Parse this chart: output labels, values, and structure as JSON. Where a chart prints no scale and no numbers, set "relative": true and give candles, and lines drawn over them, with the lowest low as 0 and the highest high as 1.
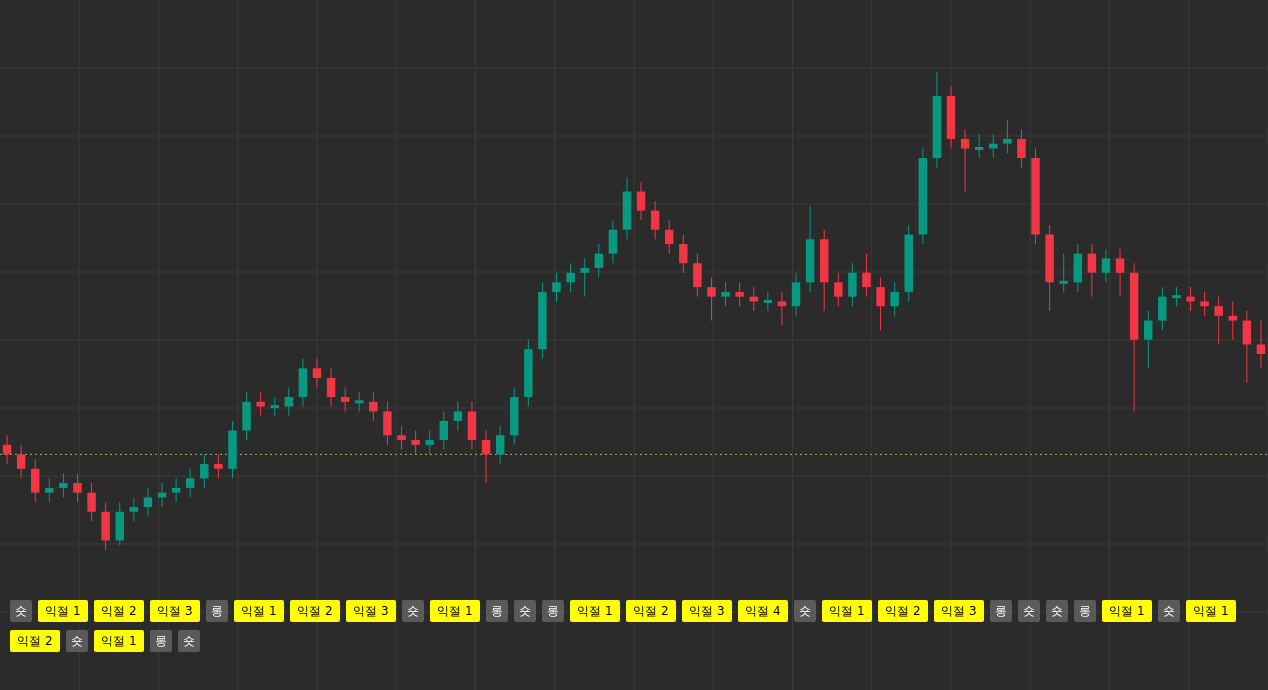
{
  "chart_data": {
    "type": "candlestick",
    "relative": true,
    "grid": true,
    "categories": [
      null,
      null,
      null,
      null,
      null,
      null,
      null,
      null,
      null,
      null,
      null,
      null,
      null,
      null,
      null,
      null,
      null,
      null,
      null,
      null,
      null,
      null,
      null,
      null,
      null,
      null,
      null,
      null,
      null,
      null,
      null,
      null,
      null,
      null,
      null,
      null,
      null,
      null,
      null,
      null,
      null,
      null,
      null,
      null,
      null,
      null,
      null,
      null,
      null,
      null,
      null,
      null,
      null,
      null,
      null,
      null,
      null,
      null,
      null,
      null,
      null,
      null,
      null,
      null,
      null,
      null,
      null,
      null,
      null,
      null,
      null,
      null,
      null,
      null,
      null,
      null,
      null,
      null,
      null,
      null,
      null,
      null,
      null,
      null,
      null,
      null,
      null,
      null,
      null,
      null
    ],
    "ohlc": [
      [
        0.22,
        0.24,
        0.18,
        0.2
      ],
      [
        0.2,
        0.22,
        0.15,
        0.17
      ],
      [
        0.17,
        0.19,
        0.1,
        0.12
      ],
      [
        0.12,
        0.15,
        0.1,
        0.13
      ],
      [
        0.13,
        0.16,
        0.11,
        0.14
      ],
      [
        0.14,
        0.16,
        0.1,
        0.12
      ],
      [
        0.12,
        0.14,
        0.06,
        0.08
      ],
      [
        0.08,
        0.1,
        0,
        0.02
      ],
      [
        0.02,
        0.1,
        0.01,
        0.08
      ],
      [
        0.08,
        0.11,
        0.06,
        0.09
      ],
      [
        0.09,
        0.13,
        0.07,
        0.11
      ],
      [
        0.11,
        0.14,
        0.09,
        0.12
      ],
      [
        0.12,
        0.15,
        0.1,
        0.13
      ],
      [
        0.13,
        0.17,
        0.11,
        0.15
      ],
      [
        0.15,
        0.2,
        0.13,
        0.18
      ],
      [
        0.18,
        0.2,
        0.15,
        0.17
      ],
      [
        0.17,
        0.27,
        0.15,
        0.25
      ],
      [
        0.25,
        0.33,
        0.23,
        0.31
      ],
      [
        0.31,
        0.33,
        0.28,
        0.3
      ],
      [
        0.3,
        0.32,
        0.28,
        0.3
      ],
      [
        0.3,
        0.34,
        0.28,
        0.32
      ],
      [
        0.32,
        0.4,
        0.3,
        0.38
      ],
      [
        0.38,
        0.4,
        0.34,
        0.36
      ],
      [
        0.36,
        0.38,
        0.3,
        0.32
      ],
      [
        0.32,
        0.34,
        0.29,
        0.31
      ],
      [
        0.31,
        0.33,
        0.29,
        0.31
      ],
      [
        0.31,
        0.33,
        0.27,
        0.29
      ],
      [
        0.29,
        0.31,
        0.22,
        0.24
      ],
      [
        0.24,
        0.26,
        0.21,
        0.23
      ],
      [
        0.23,
        0.25,
        0.2,
        0.22
      ],
      [
        0.22,
        0.25,
        0.2,
        0.23
      ],
      [
        0.23,
        0.29,
        0.21,
        0.27
      ],
      [
        0.27,
        0.31,
        0.25,
        0.29
      ],
      [
        0.29,
        0.31,
        0.21,
        0.23
      ],
      [
        0.23,
        0.25,
        0.14,
        0.2
      ],
      [
        0.2,
        0.26,
        0.18,
        0.24
      ],
      [
        0.24,
        0.34,
        0.22,
        0.32
      ],
      [
        0.32,
        0.44,
        0.3,
        0.42
      ],
      [
        0.42,
        0.56,
        0.4,
        0.54
      ],
      [
        0.54,
        0.58,
        0.52,
        0.56
      ],
      [
        0.56,
        0.6,
        0.54,
        0.58
      ],
      [
        0.58,
        0.61,
        0.53,
        0.59
      ],
      [
        0.59,
        0.64,
        0.57,
        0.62
      ],
      [
        0.62,
        0.69,
        0.6,
        0.67
      ],
      [
        0.67,
        0.78,
        0.65,
        0.75
      ],
      [
        0.75,
        0.77,
        0.69,
        0.71
      ],
      [
        0.71,
        0.73,
        0.65,
        0.67
      ],
      [
        0.67,
        0.69,
        0.62,
        0.64
      ],
      [
        0.64,
        0.66,
        0.58,
        0.6
      ],
      [
        0.6,
        0.62,
        0.53,
        0.55
      ],
      [
        0.55,
        0.57,
        0.48,
        0.53
      ],
      [
        0.53,
        0.56,
        0.51,
        0.54
      ],
      [
        0.54,
        0.56,
        0.51,
        0.53
      ],
      [
        0.53,
        0.55,
        0.5,
        0.52
      ],
      [
        0.52,
        0.54,
        0.5,
        0.52
      ],
      [
        0.52,
        0.54,
        0.47,
        0.51
      ],
      [
        0.51,
        0.58,
        0.49,
        0.56
      ],
      [
        0.56,
        0.72,
        0.54,
        0.65
      ],
      [
        0.65,
        0.67,
        0.5,
        0.56
      ],
      [
        0.56,
        0.58,
        0.51,
        0.53
      ],
      [
        0.53,
        0.6,
        0.51,
        0.58
      ],
      [
        0.58,
        0.62,
        0.53,
        0.55
      ],
      [
        0.55,
        0.57,
        0.46,
        0.51
      ],
      [
        0.51,
        0.56,
        0.49,
        0.54
      ],
      [
        0.54,
        0.68,
        0.52,
        0.66
      ],
      [
        0.66,
        0.84,
        0.64,
        0.82
      ],
      [
        0.82,
        1,
        0.8,
        0.95
      ],
      [
        0.95,
        0.97,
        0.84,
        0.86
      ],
      [
        0.86,
        0.88,
        0.75,
        0.84
      ],
      [
        0.84,
        0.87,
        0.82,
        0.84
      ],
      [
        0.84,
        0.87,
        0.82,
        0.85
      ],
      [
        0.85,
        0.9,
        0.83,
        0.86
      ],
      [
        0.86,
        0.88,
        0.8,
        0.82
      ],
      [
        0.82,
        0.84,
        0.64,
        0.66
      ],
      [
        0.66,
        0.68,
        0.5,
        0.56
      ],
      [
        0.56,
        0.62,
        0.54,
        0.56
      ],
      [
        0.56,
        0.64,
        0.54,
        0.62
      ],
      [
        0.62,
        0.64,
        0.53,
        0.58
      ],
      [
        0.58,
        0.63,
        0.56,
        0.61
      ],
      [
        0.61,
        0.63,
        0.53,
        0.58
      ],
      [
        0.58,
        0.6,
        0.29,
        0.44
      ],
      [
        0.44,
        0.5,
        0.38,
        0.48
      ],
      [
        0.48,
        0.55,
        0.46,
        0.53
      ],
      [
        0.53,
        0.55,
        0.51,
        0.53
      ],
      [
        0.53,
        0.55,
        0.5,
        0.52
      ],
      [
        0.52,
        0.54,
        0.49,
        0.51
      ],
      [
        0.51,
        0.53,
        0.43,
        0.49
      ],
      [
        0.49,
        0.52,
        0.44,
        0.48
      ],
      [
        0.48,
        0.5,
        0.35,
        0.43
      ],
      [
        0.43,
        0.48,
        0.38,
        0.41
      ]
    ],
    "ref_lines": [
      {
        "axis": "y",
        "value": 0.2,
        "color": "#8bc34a",
        "line_style": "dotted"
      }
    ],
    "annotations": [
      "숏",
      "익절 1",
      "익절 2",
      "익절 3",
      "롱",
      "익절 1",
      "익절 2",
      "익절 3",
      "숏",
      "익절 1",
      "롱",
      "숏",
      "롱",
      "익절 1",
      "익절 2",
      "익절 3",
      "익절 4",
      "숏",
      "익절 1",
      "익절 2",
      "익절 3",
      "롱",
      "숏",
      "숏",
      "롱",
      "익절 1",
      "숏",
      "익절 1",
      "익절 2",
      "숏",
      "익절 1",
      "롱",
      "숏"
    ]
  }
}
